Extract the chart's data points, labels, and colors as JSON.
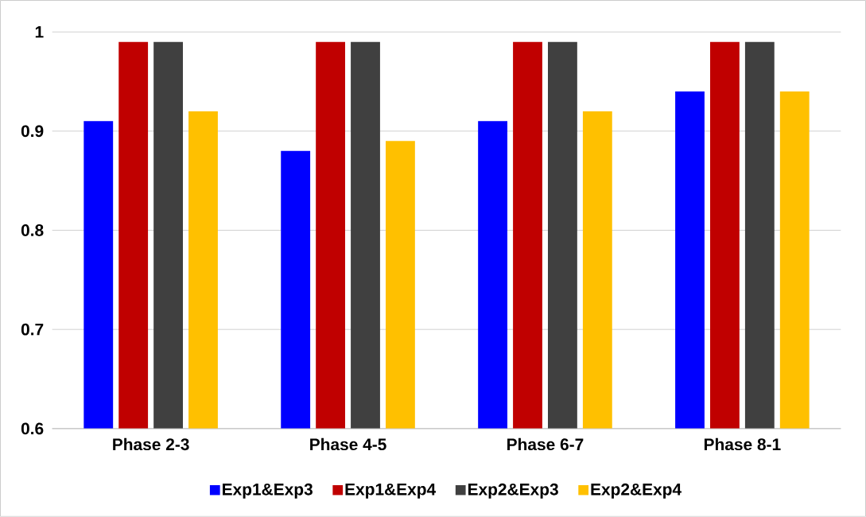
{
  "chart_data": {
    "type": "bar",
    "categories": [
      "Phase 2-3",
      "Phase 4-5",
      "Phase 6-7",
      "Phase 8-1"
    ],
    "series": [
      {
        "name": "Exp1&Exp3",
        "color": "#0000ff",
        "values": [
          0.91,
          0.88,
          0.91,
          0.94
        ]
      },
      {
        "name": "Exp1&Exp4",
        "color": "#c00000",
        "values": [
          0.99,
          0.99,
          0.99,
          0.99
        ]
      },
      {
        "name": "Exp2&Exp3",
        "color": "#404040",
        "values": [
          0.99,
          0.99,
          0.99,
          0.99
        ]
      },
      {
        "name": "Exp2&Exp4",
        "color": "#ffc000",
        "values": [
          0.92,
          0.89,
          0.92,
          0.94
        ]
      }
    ],
    "ylim": [
      0.6,
      1
    ],
    "yticks": [
      0.6,
      0.7,
      0.8,
      0.9,
      1
    ],
    "grid": "y",
    "legend": "bottom"
  }
}
